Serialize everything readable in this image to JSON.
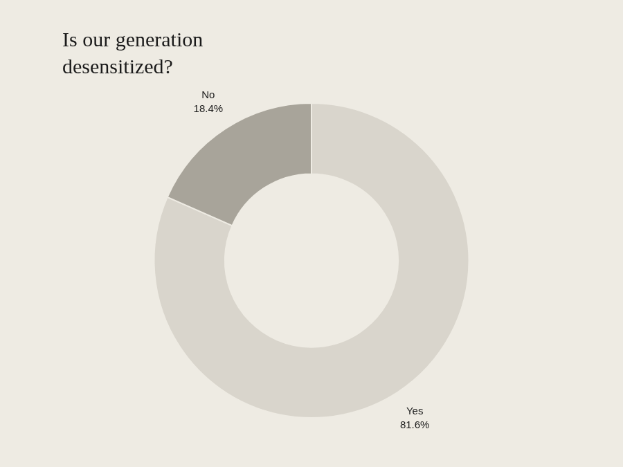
{
  "chart_data": {
    "type": "donut",
    "title": "Is our generation\ndesensitized?",
    "categories": [
      "Yes",
      "No"
    ],
    "values": [
      81.6,
      18.4
    ],
    "value_labels": [
      "81.6%",
      "18.4%"
    ],
    "colors": [
      "#d9d5cc",
      "#a8a49a"
    ],
    "data_labels": true
  }
}
